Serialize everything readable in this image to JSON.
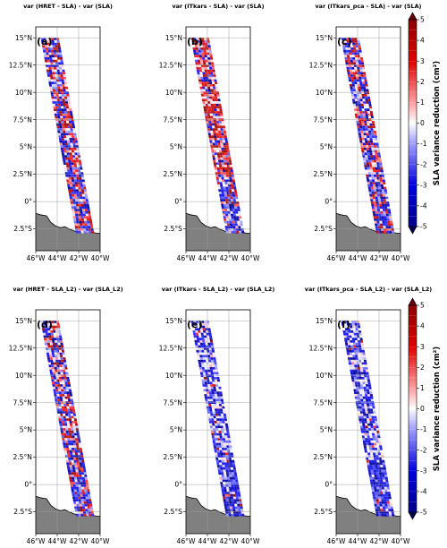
{
  "chart_data": {
    "type": "heatmap",
    "colorbar": {
      "label": "SLA variance reduction (cm²)",
      "ticks": [
        5,
        4,
        3,
        2,
        1,
        0,
        -1,
        -2,
        -3,
        -4,
        -5
      ],
      "range": [
        -5,
        5
      ],
      "colormap": "seismic-discrete",
      "colors": {
        "low": "#00008b",
        "mid": "#ffffff",
        "high": "#8b0000",
        "land": "#808080"
      }
    },
    "lat_ticks": [
      "15°N",
      "12.5°N",
      "10°N",
      "7.5°N",
      "5°N",
      "2.5°N",
      "0°",
      "2.5°S"
    ],
    "lon_ticks": [
      "46°W",
      "44°W",
      "42°W",
      "40°W"
    ],
    "lat_range": [
      -4.5,
      16
    ],
    "lon_range": [
      -46,
      -40
    ],
    "panels": [
      {
        "tag": "(a)",
        "title": "var (HRET - SLA) - var (SLA)",
        "profile": "mixed"
      },
      {
        "tag": "(b)",
        "title": "var (ITkars - SLA) - var (SLA)",
        "profile": "red"
      },
      {
        "tag": "(c)",
        "title": "var (ITkars_pca - SLA) - var (SLA)",
        "profile": "mixed"
      },
      {
        "tag": "(d)",
        "title": "var (HRET - SLA_L2) - var (SLA_L2)",
        "profile": "mixed"
      },
      {
        "tag": "(e)",
        "title": "var (ITkars - SLA_L2) - var (SLA_L2)",
        "profile": "blue"
      },
      {
        "tag": "(f)",
        "title": "var (ITkars_pca - SLA_L2) - var (SLA_L2)",
        "profile": "blue"
      }
    ]
  }
}
